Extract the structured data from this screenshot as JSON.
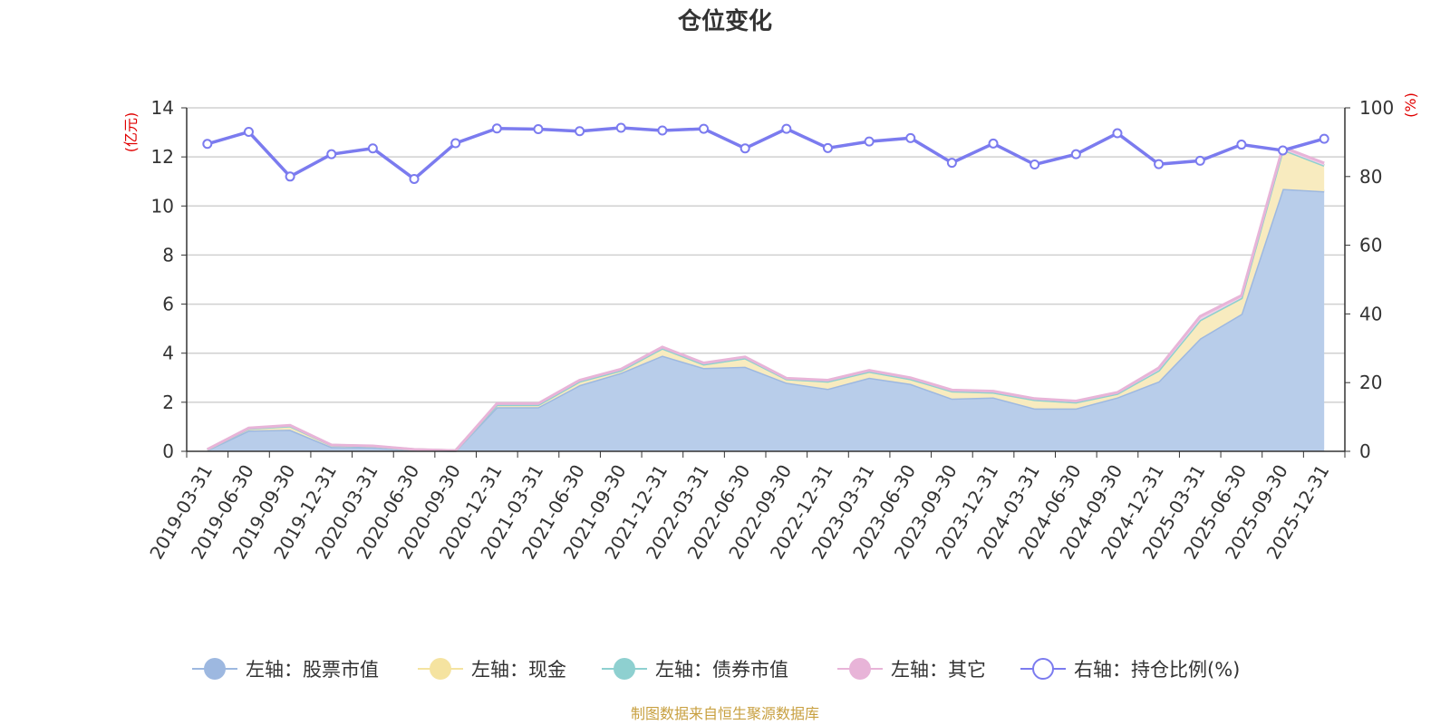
{
  "chart_data": {
    "type": "area",
    "title": "仓位变化",
    "y_left_unit": "(亿元)",
    "y_right_unit": "(%)",
    "y_left_range": [
      0,
      14
    ],
    "y_left_ticks": [
      "0",
      "2",
      "4",
      "6",
      "8",
      "10",
      "12",
      "14"
    ],
    "y_right_range": [
      0,
      100
    ],
    "y_right_ticks": [
      "0",
      "20",
      "40",
      "60",
      "80",
      "100"
    ],
    "categories": [
      "2019-03-31",
      "2019-06-30",
      "2019-09-30",
      "2019-12-31",
      "2020-03-31",
      "2020-06-30",
      "2020-09-30",
      "2020-12-31",
      "2021-03-31",
      "2021-06-30",
      "2021-09-30",
      "2021-12-31",
      "2022-03-31",
      "2022-06-30",
      "2022-09-30",
      "2022-12-31",
      "2023-03-31",
      "2023-06-30",
      "2023-09-30",
      "2023-12-31",
      "2024-03-31",
      "2024-06-30",
      "2024-09-30",
      "2024-12-31",
      "2025-03-31",
      "2025-06-30",
      "2025-09-30",
      "2025-12-31"
    ],
    "series": [
      {
        "name": "左轴：股票市值",
        "axis": "left",
        "color": "#9db8e0",
        "fill": "#b8cdea",
        "values": [
          0.05,
          0.85,
          0.88,
          0.18,
          0.16,
          0.05,
          0.02,
          1.8,
          1.8,
          2.7,
          3.2,
          3.9,
          3.4,
          3.45,
          2.8,
          2.55,
          3.0,
          2.75,
          2.15,
          2.2,
          1.75,
          1.75,
          2.2,
          2.85,
          4.6,
          5.6,
          10.7,
          10.6
        ]
      },
      {
        "name": "左轴：现金",
        "axis": "left",
        "color": "#f5e3a0",
        "fill": "#f8ebbf",
        "values": [
          0.02,
          0.08,
          0.15,
          0.07,
          0.05,
          0.02,
          0.01,
          0.1,
          0.1,
          0.15,
          0.1,
          0.3,
          0.15,
          0.35,
          0.15,
          0.3,
          0.25,
          0.2,
          0.3,
          0.2,
          0.35,
          0.25,
          0.15,
          0.45,
          0.75,
          0.65,
          1.6,
          1.05
        ]
      },
      {
        "name": "左轴：债券市值",
        "axis": "left",
        "color": "#8ed0d0",
        "fill": "#bfe6e6",
        "values": [
          0,
          0,
          0,
          0,
          0,
          0,
          0,
          0,
          0,
          0,
          0,
          0,
          0,
          0,
          0,
          0,
          0,
          0,
          0,
          0,
          0,
          0,
          0,
          0,
          0,
          0,
          0,
          0
        ]
      },
      {
        "name": "左轴：其它",
        "axis": "left",
        "color": "#e8b4d8",
        "fill": "#f1d0e8",
        "values": [
          0.01,
          0.02,
          0.03,
          0.01,
          0.01,
          0.01,
          0.0,
          0.05,
          0.05,
          0.05,
          0.05,
          0.05,
          0.05,
          0.05,
          0.03,
          0.05,
          0.05,
          0.05,
          0.05,
          0.05,
          0.05,
          0.05,
          0.05,
          0.1,
          0.15,
          0.1,
          0.1,
          0.1
        ]
      },
      {
        "name": "右轴：持仓比例(%)",
        "axis": "right",
        "color": "#7b7bef",
        "values": [
          89.5,
          93.0,
          80.0,
          86.5,
          88.2,
          79.3,
          89.7,
          94.0,
          93.8,
          93.2,
          94.2,
          93.4,
          93.9,
          88.2,
          93.9,
          88.3,
          90.2,
          91.2,
          84.0,
          89.6,
          83.5,
          86.5,
          92.6,
          83.6,
          84.6,
          89.3,
          87.6,
          91.0
        ]
      }
    ]
  },
  "source_note": "制图数据来自恒生聚源数据库"
}
